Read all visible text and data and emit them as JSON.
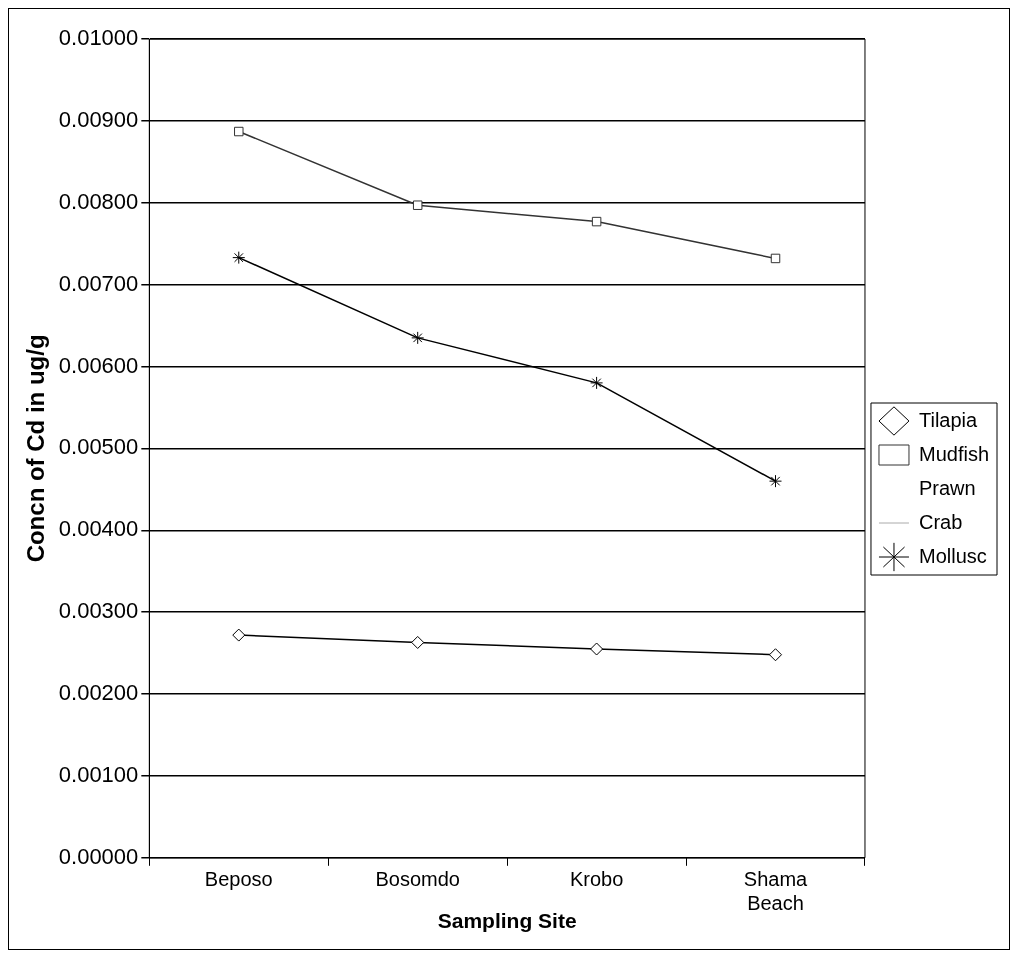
{
  "chart_data": {
    "type": "line",
    "xlabel": "Sampling Site",
    "ylabel": "Concn of Cd in ug/g",
    "categories": [
      "Beposo",
      "Bosomdo",
      "Krobo",
      "Shama Beach"
    ],
    "series": [
      {
        "name": "Tilapia",
        "color": "#000000",
        "marker": "diamond",
        "values": [
          0.00272,
          0.00263,
          0.00255,
          0.00248
        ]
      },
      {
        "name": "Mudfish",
        "color": "#333333",
        "marker": "square",
        "values": [
          0.00887,
          0.00797,
          0.00777,
          0.00732
        ]
      },
      {
        "name": "Prawn",
        "marker": "none",
        "values": [
          null,
          null,
          null,
          null
        ]
      },
      {
        "name": "Crab",
        "color": "#aaaaaa",
        "marker": "none",
        "values": [
          null,
          null,
          null,
          null
        ]
      },
      {
        "name": "Mollusc",
        "color": "#000000",
        "marker": "cross",
        "values": [
          0.00733,
          0.00635,
          0.0058,
          0.0046
        ]
      }
    ],
    "ylim": [
      0,
      0.01
    ],
    "yticks": [
      {
        "value": 0,
        "label": "0.00000"
      },
      {
        "value": 0.001,
        "label": "0.00100"
      },
      {
        "value": 0.002,
        "label": "0.00200"
      },
      {
        "value": 0.003,
        "label": "0.00300"
      },
      {
        "value": 0.004,
        "label": "0.00400"
      },
      {
        "value": 0.005,
        "label": "0.00500"
      },
      {
        "value": 0.006,
        "label": "0.00600"
      },
      {
        "value": 0.007,
        "label": "0.00700"
      },
      {
        "value": 0.008,
        "label": "0.00800"
      },
      {
        "value": 0.009,
        "label": "0.00900"
      },
      {
        "value": 0.01,
        "label": "0.01000"
      }
    ],
    "grid": "y",
    "legend": "right"
  }
}
